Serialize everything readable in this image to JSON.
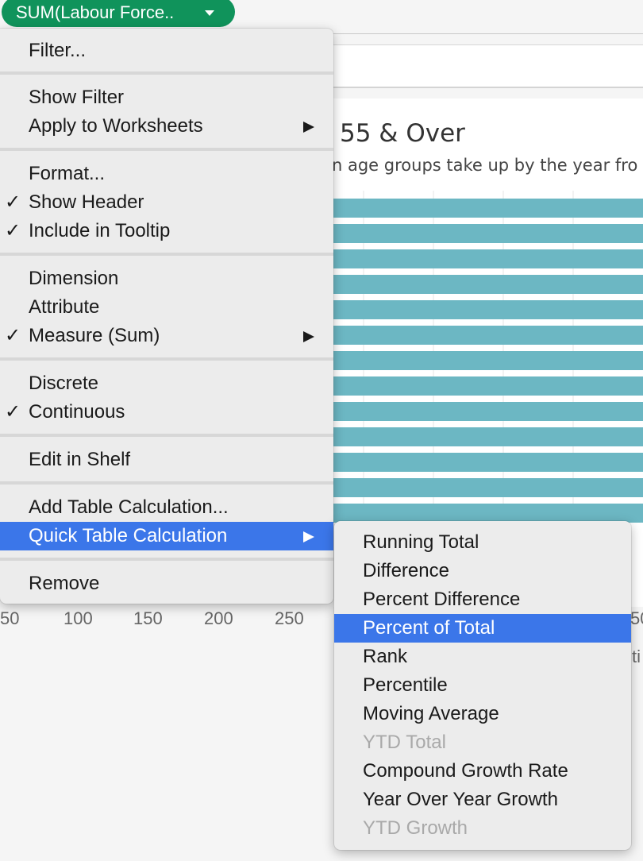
{
  "pill": {
    "label": "SUM(Labour Force..",
    "color": "#10935b"
  },
  "chart": {
    "title_fragment": "55 & Over",
    "subtitle_fragment": "n age groups take up by the year fro",
    "bar_color": "#6cb7c3",
    "bar_count": 13,
    "axis_ticks": [
      "50",
      "100",
      "150",
      "200",
      "250"
    ],
    "right_tick_fragment": "50",
    "right_label_fragment": "ti"
  },
  "context_menu": {
    "filter": "Filter...",
    "show_filter": "Show Filter",
    "apply_to_worksheets": "Apply to Worksheets",
    "format": "Format...",
    "show_header": "Show Header",
    "include_in_tooltip": "Include in Tooltip",
    "dimension": "Dimension",
    "attribute": "Attribute",
    "measure_sum": "Measure (Sum)",
    "discrete": "Discrete",
    "continuous": "Continuous",
    "edit_in_shelf": "Edit in Shelf",
    "add_table_calculation": "Add Table Calculation...",
    "quick_table_calculation": "Quick Table Calculation",
    "remove": "Remove",
    "check_mark": "✓",
    "highlight_color": "#3b76e9"
  },
  "submenu": {
    "running_total": "Running Total",
    "difference": "Difference",
    "percent_difference": "Percent Difference",
    "percent_of_total": "Percent of Total",
    "rank": "Rank",
    "percentile": "Percentile",
    "moving_average": "Moving Average",
    "ytd_total": "YTD Total",
    "compound_growth_rate": "Compound Growth Rate",
    "year_over_year_growth": "Year Over Year Growth",
    "ytd_growth": "YTD Growth"
  }
}
